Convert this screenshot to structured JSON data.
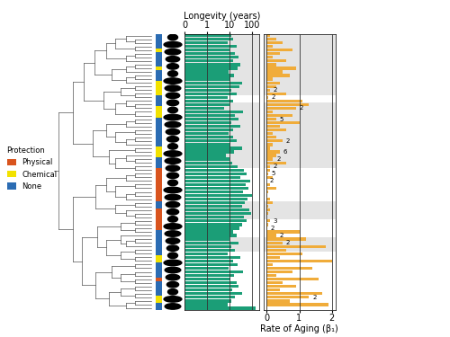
{
  "chart_data": [
    {
      "type": "bar",
      "orientation": "horizontal",
      "title": "Longevity (years)",
      "categories": [
        null,
        null,
        null,
        null,
        null,
        null,
        null,
        null,
        null,
        null,
        null,
        null,
        null,
        null,
        null,
        null,
        null,
        null,
        null,
        null,
        null,
        null,
        null,
        null,
        null,
        null,
        null,
        null,
        null,
        null,
        null,
        null,
        null,
        null,
        null,
        null,
        null,
        null,
        null,
        null,
        null,
        null,
        null,
        null,
        null,
        null,
        null,
        null,
        null,
        null,
        null,
        null,
        null,
        null,
        null,
        null,
        null,
        null,
        null,
        null,
        null,
        null,
        null,
        null,
        null,
        null,
        null,
        null,
        null,
        null,
        null,
        null,
        null,
        null,
        null,
        null
      ],
      "values": [
        12,
        15,
        8,
        20,
        10,
        18,
        25,
        14,
        30,
        22,
        9,
        16,
        11,
        35,
        28,
        12,
        20,
        8,
        15,
        10,
        6,
        40,
        18,
        25,
        12,
        30,
        15,
        9,
        14,
        20,
        11,
        35,
        16,
        7,
        10,
        13,
        22,
        45,
        60,
        30,
        80,
        55,
        70,
        40,
        100,
        65,
        50,
        35,
        75,
        90,
        45,
        60,
        38,
        28,
        15,
        20,
        10,
        25,
        12,
        18,
        8,
        30,
        14,
        22,
        9,
        40,
        16,
        11,
        20,
        25,
        13,
        35,
        18,
        12,
        8,
        150
      ],
      "color": "#1b9e77",
      "log": "x",
      "xlim": [
        0.1,
        200
      ],
      "xticks": [
        {
          "value": 0.1,
          "label": "0"
        },
        1,
        10,
        100
      ],
      "grid": true,
      "highlight_rows": [
        [
          0,
          16
        ],
        [
          19,
          36
        ],
        [
          46,
          50
        ],
        [
          56,
          59
        ]
      ]
    },
    {
      "type": "bar",
      "orientation": "horizontal",
      "x_label": "Rate of Aging (β₁)",
      "categories": [
        null,
        null,
        null,
        null,
        null,
        null,
        null,
        null,
        null,
        null,
        null,
        null,
        null,
        null,
        null,
        null,
        null,
        null,
        null,
        null,
        null,
        null,
        null,
        null,
        null,
        null,
        null,
        null,
        null,
        null,
        null,
        null,
        null,
        null,
        null,
        null,
        null,
        null,
        null,
        null,
        null,
        null,
        null,
        null,
        null,
        null,
        null,
        null,
        null,
        null,
        null,
        null,
        null,
        null,
        null,
        null,
        null,
        null,
        null,
        null,
        null,
        null,
        null,
        null,
        null,
        null,
        null,
        null,
        null,
        null,
        null,
        null,
        null,
        null,
        null,
        null
      ],
      "values": [
        0.1,
        0.3,
        0.5,
        0.2,
        0.8,
        0.4,
        0.2,
        0.6,
        0.3,
        0.9,
        0.5,
        0.7,
        0.2,
        0.4,
        0.3,
        0.1,
        0.6,
        0.05,
        1.1,
        1.3,
        0.9,
        0.2,
        0.8,
        0.3,
        1.0,
        0.4,
        0.6,
        0.2,
        0.3,
        0.5,
        0.2,
        0.1,
        0.4,
        0.3,
        0.2,
        0.6,
        0.1,
        0.1,
        0.05,
        0.2,
        0.0,
        0.1,
        0.3,
        0.05,
        0.02,
        0.1,
        0.2,
        0.05,
        0.1,
        0.04,
        0.0,
        0.1,
        0.05,
        0.03,
        1.0,
        0.3,
        1.2,
        0.5,
        1.8,
        0.6,
        1.1,
        0.4,
        2.0,
        0.2,
        1.4,
        0.8,
        0.3,
        1.6,
        0.5,
        0.9,
        0.4,
        1.7,
        1.3,
        0.7,
        1.9,
        0.02
      ],
      "color": "#f0ac3a",
      "xlim": [
        -0.1,
        2.1
      ],
      "xticks": [
        0,
        1,
        2
      ],
      "grid": true,
      "highlight_rows": [
        [
          0,
          16
        ],
        [
          19,
          36
        ],
        [
          46,
          50
        ],
        [
          56,
          59
        ]
      ],
      "annotations": [
        {
          "row": 15,
          "text": "2"
        },
        {
          "row": 17,
          "text": "2"
        },
        {
          "row": 20,
          "text": "2"
        },
        {
          "row": 23,
          "text": "5"
        },
        {
          "row": 29,
          "text": "2"
        },
        {
          "row": 32,
          "text": "6"
        },
        {
          "row": 34,
          "text": "2"
        },
        {
          "row": 36,
          "text": "2"
        },
        {
          "row": 38,
          "text": "5"
        },
        {
          "row": 40,
          "text": "2"
        },
        {
          "row": 51,
          "text": "3"
        },
        {
          "row": 53,
          "text": "2"
        },
        {
          "row": 55,
          "text": "2"
        },
        {
          "row": 57,
          "text": "2"
        },
        {
          "row": 72,
          "text": "2"
        }
      ]
    }
  ],
  "legend": {
    "title": "Protection",
    "entries": [
      {
        "name": "Physical",
        "color": "#d9541e"
      },
      {
        "name": "Chemical",
        "color": "#f2e200"
      },
      {
        "name": "None",
        "color": "#2b6cb3"
      }
    ]
  },
  "protection": [
    "None",
    "None",
    "None",
    "None",
    "Chemical",
    "None",
    "None",
    "None",
    "None",
    "Chemical",
    "None",
    "None",
    "None",
    "Chemical",
    "Chemical",
    "Chemical",
    "Chemical",
    "None",
    "None",
    "None",
    "Chemical",
    "Chemical",
    "Chemical",
    "None",
    "None",
    "None",
    "None",
    "None",
    "None",
    "None",
    "None",
    "Chemical",
    "Chemical",
    "Chemical",
    "None",
    "None",
    "None",
    "Physical",
    "Physical",
    "Physical",
    "Physical",
    "Physical",
    "Physical",
    "Physical",
    "Physical",
    "Physical",
    "None",
    "None",
    "Physical",
    "Physical",
    "Physical",
    "Physical",
    "Physical",
    "Physical",
    "None",
    "None",
    "None",
    "None",
    "None",
    "None",
    "None",
    "Chemical",
    "Chemical",
    "None",
    "None",
    "None",
    "None",
    "Physical",
    "None",
    "None",
    "None",
    "None",
    "Chemical",
    "Chemical",
    "None",
    "None"
  ]
}
